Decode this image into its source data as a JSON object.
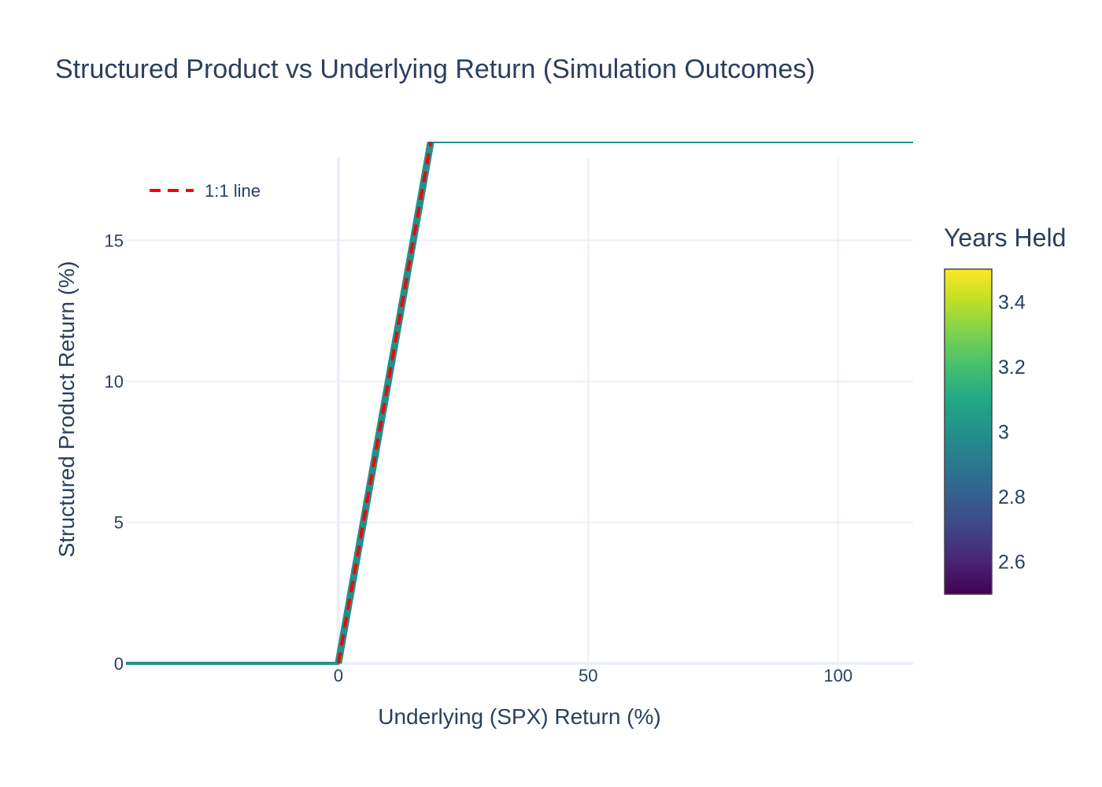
{
  "chart_data": {
    "type": "line",
    "title": "Structured Product vs Underlying Return (Simulation Outcomes)",
    "xlabel": "Underlying (SPX) Return (%)",
    "ylabel": "Structured Product Return (%)",
    "xlim": [
      -42.5,
      115
    ],
    "ylim": [
      -0.2,
      18.5
    ],
    "xticks": [
      0,
      50,
      100
    ],
    "yticks": [
      0,
      5,
      10,
      15
    ],
    "grid": true,
    "legend_position": "top-left",
    "series": [
      {
        "name": "",
        "style": "solid",
        "color": "#21918c",
        "x": [
          -42.5,
          0,
          18.5,
          115
        ],
        "y": [
          0,
          0,
          18.5,
          18.5
        ]
      },
      {
        "name": "1:1 line",
        "style": "dashed",
        "color": "#ff0000",
        "x": [
          0,
          18.5
        ],
        "y": [
          0,
          18.5
        ]
      }
    ],
    "colorbar": {
      "title": "Years Held",
      "colorscale": "viridis",
      "range": [
        2.5,
        3.5
      ],
      "ticks": [
        2.6,
        2.8,
        3,
        3.2,
        3.4
      ],
      "tick_labels": [
        "2.6",
        "2.8",
        "3",
        "3.2",
        "3.4"
      ]
    }
  }
}
